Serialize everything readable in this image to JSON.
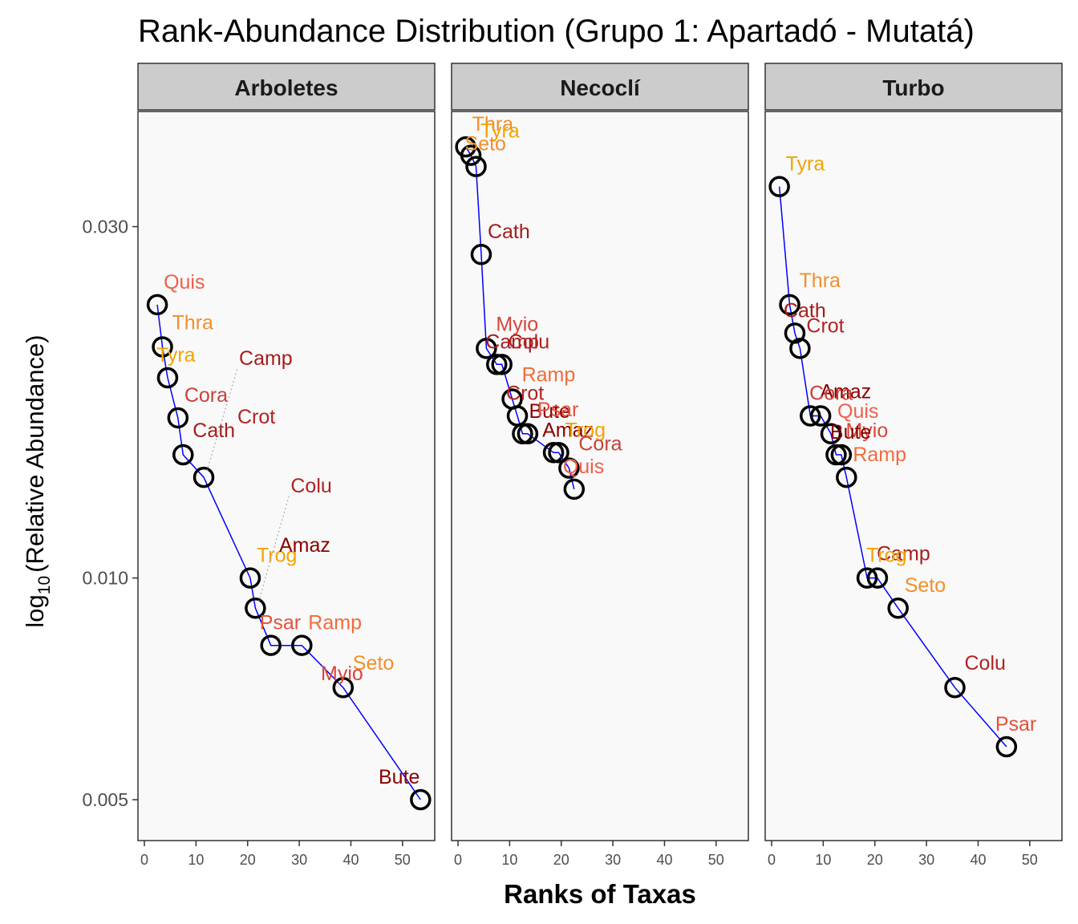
{
  "chart_data": {
    "type": "scatter",
    "title": "Rank-Abundance Distribution (Grupo 1: Apartadó - Mutatá)",
    "xlabel": "Ranks of Taxas",
    "ylabel_main": "log",
    "ylabel_sub": "10",
    "ylabel_rest": "(Relative Abundance)",
    "y_scale": "log10",
    "xlim": [
      0,
      55
    ],
    "ylim": [
      0.0044,
      0.043
    ],
    "x_ticks": [
      0,
      10,
      20,
      30,
      40,
      50
    ],
    "y_ticks": [
      {
        "value": 0.005,
        "label": "0.005"
      },
      {
        "value": 0.01,
        "label": "0.010"
      },
      {
        "value": 0.03,
        "label": "0.030"
      }
    ],
    "grid": false,
    "colors": {
      "line": "#0000ff",
      "point": "#000000",
      "panel_bg": "#f9f9f9",
      "strip_bg": "#cccccc",
      "leader": "#b0b0b0"
    },
    "panels": [
      {
        "name": "Arboletes",
        "points": [
          {
            "x": 2.5,
            "y": 0.0235,
            "label": "Quis",
            "color": "#f05e4c"
          },
          {
            "x": 3.5,
            "y": 0.0206,
            "label": "Thra",
            "color": "#f28e2b"
          },
          {
            "x": 4.5,
            "y": 0.0187,
            "label": "Tyra",
            "color": "#f4a300"
          },
          {
            "x": 6.5,
            "y": 0.0165,
            "label": "Cora",
            "color": "#c94038"
          },
          {
            "x": 7.5,
            "y": 0.0147,
            "label": "Cath",
            "color": "#a61c1c"
          },
          {
            "x": 11.5,
            "y": 0.0137,
            "label": "Camp",
            "color": "#a61c1c",
            "leader": true
          },
          {
            "x": 20.5,
            "y": 0.01,
            "label": "Trog",
            "color": "#f4a300"
          },
          {
            "x": 21.5,
            "y": 0.0091,
            "label": "Colu",
            "color": "#b22222",
            "leader": true
          },
          {
            "x": 24.5,
            "y": 0.0081,
            "label": "Psar",
            "color": "#e6503c"
          },
          {
            "x": 30.5,
            "y": 0.0081,
            "label": "Ramp",
            "color": "#f26b3a"
          },
          {
            "x": 38.5,
            "y": 0.0071,
            "label": "Seto",
            "color": "#f28e2b"
          },
          {
            "x": 53.5,
            "y": 0.005,
            "label": "Bute",
            "color": "#8b0000"
          }
        ],
        "extra_labels": [
          {
            "label": "Crot",
            "color": "#b22222"
          },
          {
            "label": "Amaz",
            "color": "#8b0000"
          },
          {
            "label": "Myio",
            "color": "#d8453a"
          }
        ]
      },
      {
        "name": "Necoclí",
        "points": [
          {
            "x": 1.5,
            "y": 0.0385,
            "label": "Thra",
            "color": "#f28e2b"
          },
          {
            "x": 2.5,
            "y": 0.0375,
            "label": "Tyra",
            "color": "#f4a300"
          },
          {
            "x": 3.5,
            "y": 0.0362,
            "label": "Seto",
            "color": "#f28e2b"
          },
          {
            "x": 4.5,
            "y": 0.0275,
            "label": "Cath",
            "color": "#a61c1c"
          },
          {
            "x": 5.5,
            "y": 0.0205,
            "label": "Myio",
            "color": "#d8453a"
          },
          {
            "x": 7.5,
            "y": 0.0195,
            "label": "Camp",
            "color": "#a61c1c"
          },
          {
            "x": 8.5,
            "y": 0.0195,
            "label": "Colu",
            "color": "#b22222"
          },
          {
            "x": 10.5,
            "y": 0.0175,
            "label": "Ramp",
            "color": "#f26b3a"
          },
          {
            "x": 11.5,
            "y": 0.0166,
            "label": "Crot",
            "color": "#b22222"
          },
          {
            "x": 12.5,
            "y": 0.0157,
            "label": "Bute",
            "color": "#8b0000"
          },
          {
            "x": 13.5,
            "y": 0.0157,
            "label": "Psar",
            "color": "#e6503c"
          },
          {
            "x": 18.5,
            "y": 0.0148,
            "label": "Amaz",
            "color": "#8b0000"
          },
          {
            "x": 19.5,
            "y": 0.0148,
            "label": "Trog",
            "color": "#f4a300"
          },
          {
            "x": 21.5,
            "y": 0.0141,
            "label": "Cora",
            "color": "#c94038"
          },
          {
            "x": 22.5,
            "y": 0.0132,
            "label": "Quis",
            "color": "#f05e4c"
          }
        ]
      },
      {
        "name": "Turbo",
        "points": [
          {
            "x": 1.5,
            "y": 0.034,
            "label": "Tyra",
            "color": "#f4a300"
          },
          {
            "x": 3.5,
            "y": 0.0235,
            "label": "Thra",
            "color": "#f28e2b"
          },
          {
            "x": 4.5,
            "y": 0.0215,
            "label": "Cath",
            "color": "#a61c1c"
          },
          {
            "x": 5.5,
            "y": 0.0205,
            "label": "Crot",
            "color": "#b22222"
          },
          {
            "x": 7.5,
            "y": 0.0166,
            "label": "Amaz",
            "color": "#8b0000"
          },
          {
            "x": 9.5,
            "y": 0.0166,
            "label": "Cora",
            "color": "#c94038"
          },
          {
            "x": 11.5,
            "y": 0.0157,
            "label": "Quis",
            "color": "#f05e4c"
          },
          {
            "x": 12.5,
            "y": 0.0147,
            "label": "Myio",
            "color": "#d8453a"
          },
          {
            "x": 13.5,
            "y": 0.0147,
            "label": "Bute",
            "color": "#8b0000"
          },
          {
            "x": 14.5,
            "y": 0.0137,
            "label": "Ramp",
            "color": "#f26b3a"
          },
          {
            "x": 18.5,
            "y": 0.01,
            "label": "Camp",
            "color": "#a61c1c"
          },
          {
            "x": 20.5,
            "y": 0.01,
            "label": "Trog",
            "color": "#f4a300"
          },
          {
            "x": 24.5,
            "y": 0.0091,
            "label": "Seto",
            "color": "#f28e2b"
          },
          {
            "x": 35.5,
            "y": 0.0071,
            "label": "Colu",
            "color": "#b22222"
          },
          {
            "x": 45.5,
            "y": 0.0059,
            "label": "Psar",
            "color": "#e6503c"
          }
        ]
      }
    ]
  }
}
